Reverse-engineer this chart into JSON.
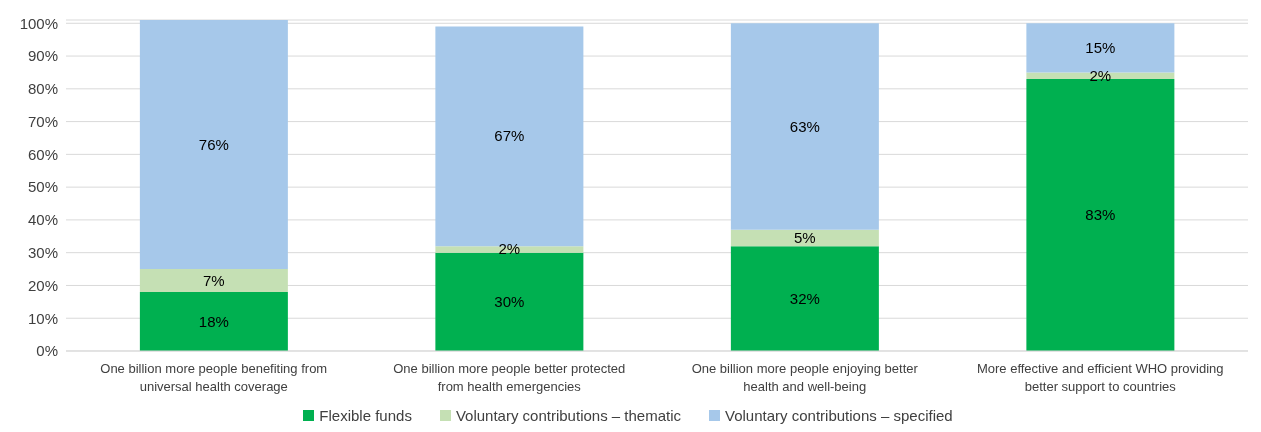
{
  "chart_data": {
    "type": "bar",
    "stacked": true,
    "categories": [
      "One billion more people benefiting from universal health coverage",
      "One billion more people better protected from health emergencies",
      "One billion more people enjoying better health and well-being",
      "More effective and efficient WHO providing better support to countries"
    ],
    "series": [
      {
        "name": "Flexible funds",
        "color": "#00b050",
        "values": [
          18,
          30,
          32,
          83
        ],
        "value_labels": [
          "18%",
          "30%",
          "32%",
          "83%"
        ]
      },
      {
        "name": "Voluntary contributions – thematic",
        "color": "#c5e0b4",
        "values": [
          7,
          2,
          5,
          2
        ],
        "value_labels": [
          "7%",
          "2%",
          "5%",
          "2%"
        ]
      },
      {
        "name": "Voluntary contributions – specified",
        "color": "#a6c8ea",
        "values": [
          76,
          67,
          63,
          15
        ],
        "value_labels": [
          "76%",
          "67%",
          "63%",
          "15%"
        ]
      }
    ],
    "ylim": [
      0,
      101
    ],
    "yticks": [
      {
        "value": 0,
        "label": "0%"
      },
      {
        "value": 10,
        "label": "10%"
      },
      {
        "value": 20,
        "label": "20%"
      },
      {
        "value": 30,
        "label": "30%"
      },
      {
        "value": 40,
        "label": "40%"
      },
      {
        "value": 50,
        "label": "50%"
      },
      {
        "value": 60,
        "label": "60%"
      },
      {
        "value": 70,
        "label": "70%"
      },
      {
        "value": 80,
        "label": "80%"
      },
      {
        "value": 90,
        "label": "90%"
      },
      {
        "value": 100,
        "label": "100%"
      }
    ],
    "grid": "y",
    "legend": "bottom"
  }
}
